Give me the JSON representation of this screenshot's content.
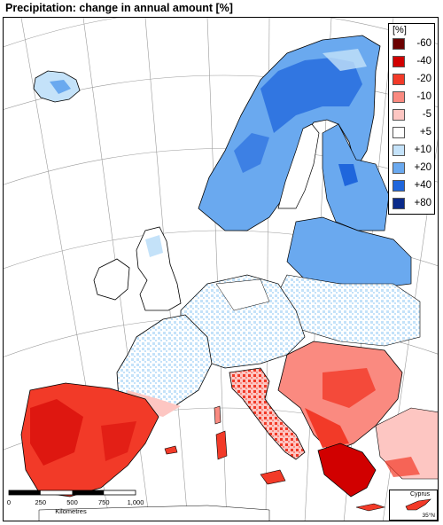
{
  "title": "Precipitation: change in annual amount [%]",
  "legend": {
    "unit": "[%]",
    "items": [
      {
        "label": "-60",
        "color": "#6b0000"
      },
      {
        "label": "-40",
        "color": "#d10000"
      },
      {
        "label": "-20",
        "color": "#f23a28"
      },
      {
        "label": "-10",
        "color": "#fa8a80"
      },
      {
        "label": "-5",
        "color": "#fdc6c2"
      },
      {
        "label": "+5",
        "color": "#ffffff"
      },
      {
        "label": "+10",
        "color": "#c4e2f9"
      },
      {
        "label": "+20",
        "color": "#6aa9ef"
      },
      {
        "label": "+40",
        "color": "#1f66dc"
      },
      {
        "label": "+80",
        "color": "#0a2a8a"
      }
    ]
  },
  "scale_bar": {
    "ticks": [
      "0",
      "250",
      "500",
      "750",
      "1,000"
    ],
    "unit": "Kilometres"
  },
  "inset": {
    "name": "Cyprus",
    "latitude_label": "35°N"
  }
}
